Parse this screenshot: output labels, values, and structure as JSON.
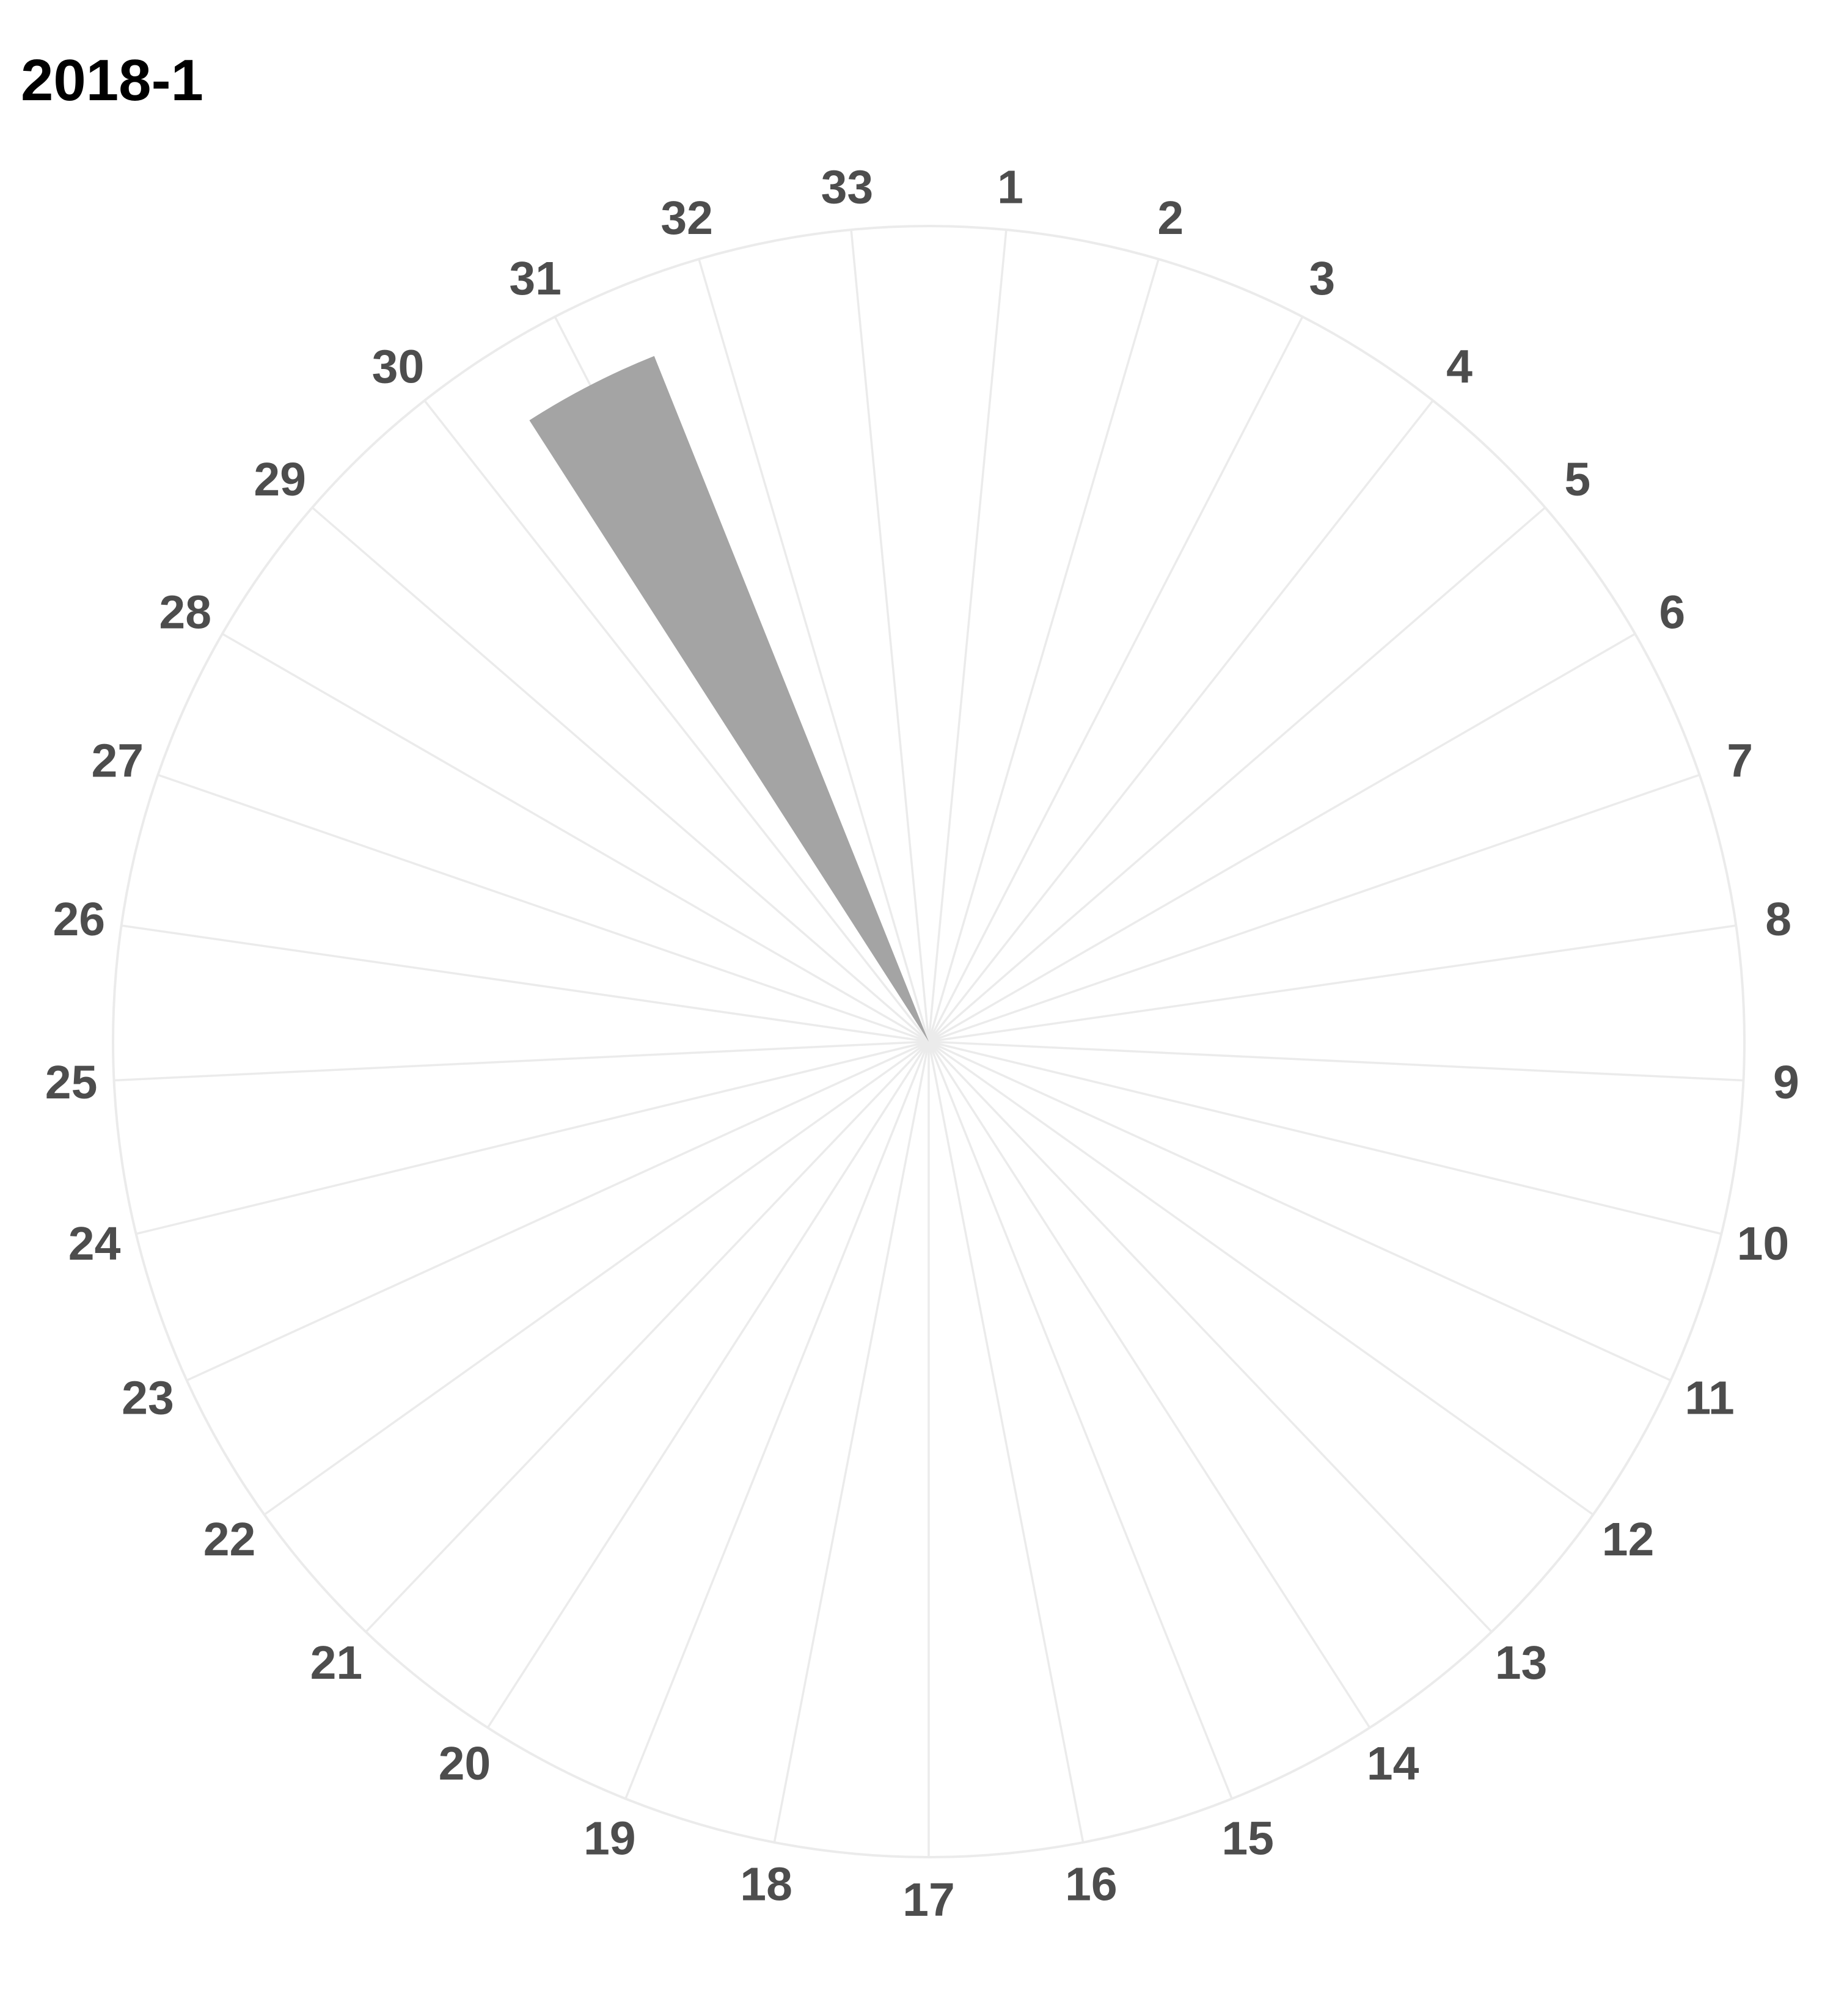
{
  "chart_data": {
    "type": "bar",
    "subtype": "polar",
    "title": "2018-1",
    "xlabel": "",
    "ylabel": "",
    "categories": [
      "1",
      "2",
      "3",
      "4",
      "5",
      "6",
      "7",
      "8",
      "9",
      "10",
      "11",
      "12",
      "13",
      "14",
      "15",
      "16",
      "17",
      "18",
      "19",
      "20",
      "21",
      "22",
      "23",
      "24",
      "25",
      "26",
      "27",
      "28",
      "29",
      "30",
      "31",
      "32",
      "33"
    ],
    "values": [
      0,
      0,
      0,
      0,
      0,
      0,
      0,
      0,
      0,
      0,
      0,
      0,
      0,
      0,
      0,
      0,
      0,
      0,
      0,
      0,
      0,
      0,
      0,
      0,
      0,
      0,
      0,
      0,
      0,
      0,
      0.82,
      0,
      0
    ],
    "ylim": [
      0,
      1
    ],
    "grid": true,
    "legend": "none",
    "colors": {
      "bar": "#a4a4a4",
      "grid": "#ebebeb",
      "tick_label": "#4d4d4d",
      "title": "#000000",
      "background": "#ffffff"
    }
  }
}
